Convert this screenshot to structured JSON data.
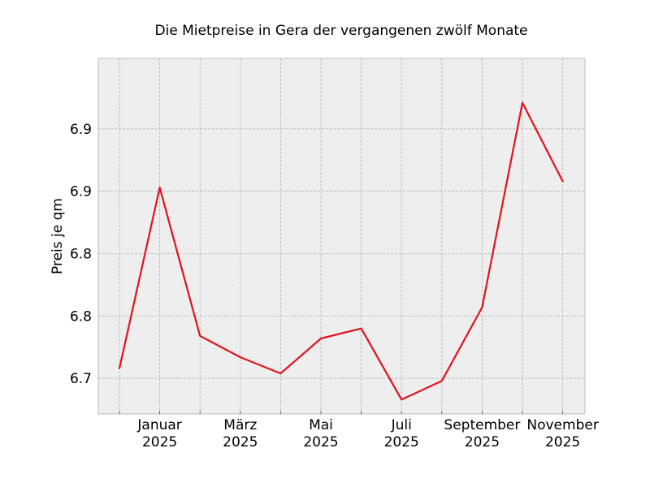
{
  "chart_data": {
    "type": "line",
    "title": "Die Mietpreise in Gera der vergangenen zwölf Monate",
    "xlabel": "",
    "ylabel": "Preis je qm",
    "x": [
      "2024-12",
      "2025-01",
      "2025-02",
      "2025-03",
      "2025-04",
      "2025-05",
      "2025-06",
      "2025-07",
      "2025-08",
      "2025-09",
      "2025-10",
      "2025-11"
    ],
    "x_tick_labels": [
      {
        "x": "2025-01",
        "month": "Januar",
        "year": "2025"
      },
      {
        "x": "2025-03",
        "month": "März",
        "year": "2025"
      },
      {
        "x": "2025-05",
        "month": "Mai",
        "year": "2025"
      },
      {
        "x": "2025-07",
        "month": "Juli",
        "year": "2025"
      },
      {
        "x": "2025-09",
        "month": "September",
        "year": "2025"
      },
      {
        "x": "2025-11",
        "month": "November",
        "year": "2025"
      }
    ],
    "series": [
      {
        "values": [
          6.708,
          6.853,
          6.734,
          6.717,
          6.704,
          6.732,
          6.74,
          6.683,
          6.698,
          6.757,
          6.921,
          6.858
        ],
        "color": "#e0131e"
      }
    ],
    "y_ticks": [
      {
        "value": 6.7,
        "label": "6.7"
      },
      {
        "value": 6.75,
        "label": "6.8"
      },
      {
        "value": 6.8,
        "label": "6.8"
      },
      {
        "value": 6.85,
        "label": "6.9"
      },
      {
        "value": 6.9,
        "label": "6.9"
      }
    ],
    "ylim": [
      6.6715,
      6.9565
    ],
    "xlim": [
      "2024-12",
      "2025-11"
    ],
    "grid": true,
    "background_color": "#eeeeee",
    "frame_color": "#bcbcbc"
  }
}
